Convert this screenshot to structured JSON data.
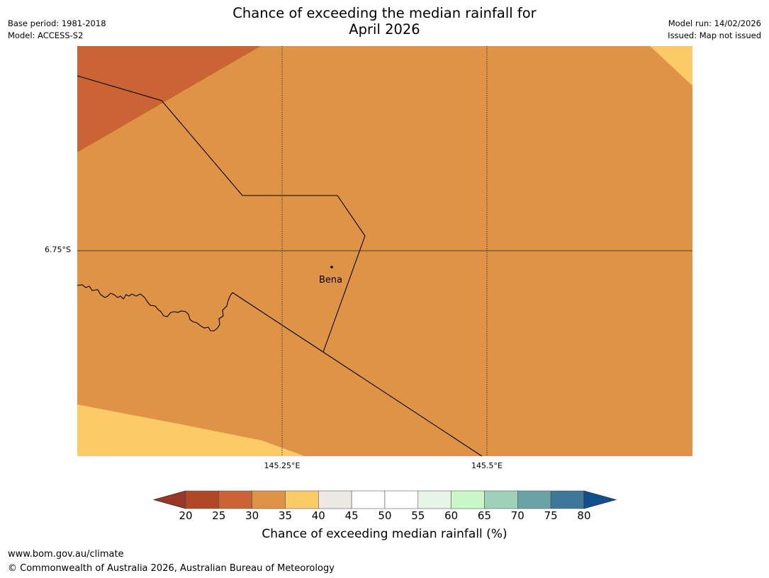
{
  "header": {
    "title_line1": "Chance of exceeding the median rainfall for",
    "title_line2": "April 2026",
    "base_period": "Base period: 1981-2018",
    "model": "Model: ACCESS-S2",
    "model_run": "Model run: 14/02/2026",
    "issued": "Issued: Map not issued"
  },
  "map": {
    "latitude_label": "6.75°S",
    "longitude_labels": [
      "145.25°E",
      "145.5°E"
    ],
    "place": {
      "name": "Bena"
    },
    "colors": {
      "band_25_30": "#cb6434",
      "band_30_35": "#df9346",
      "band_35_40": "#fdca68",
      "grid": "#222222",
      "border": "#000000"
    }
  },
  "colorbar": {
    "ticks": [
      "20",
      "25",
      "30",
      "35",
      "40",
      "45",
      "50",
      "55",
      "60",
      "65",
      "70",
      "75",
      "80"
    ],
    "colors": [
      "#ae4827",
      "#cb6434",
      "#df9346",
      "#fdca68",
      "#ece9e4",
      "#ffffff",
      "#ffffff",
      "#e8f6e8",
      "#c8f9c6",
      "#9dd1b9",
      "#6ba3a5",
      "#3d7799"
    ],
    "under_color": "#993625",
    "over_color": "#0f4f8c",
    "label": "Chance of exceeding median rainfall (%)"
  },
  "footer": {
    "url": "www.bom.gov.au/climate",
    "copyright": "© Commonwealth of Australia 2026, Australian Bureau of Meteorology"
  }
}
